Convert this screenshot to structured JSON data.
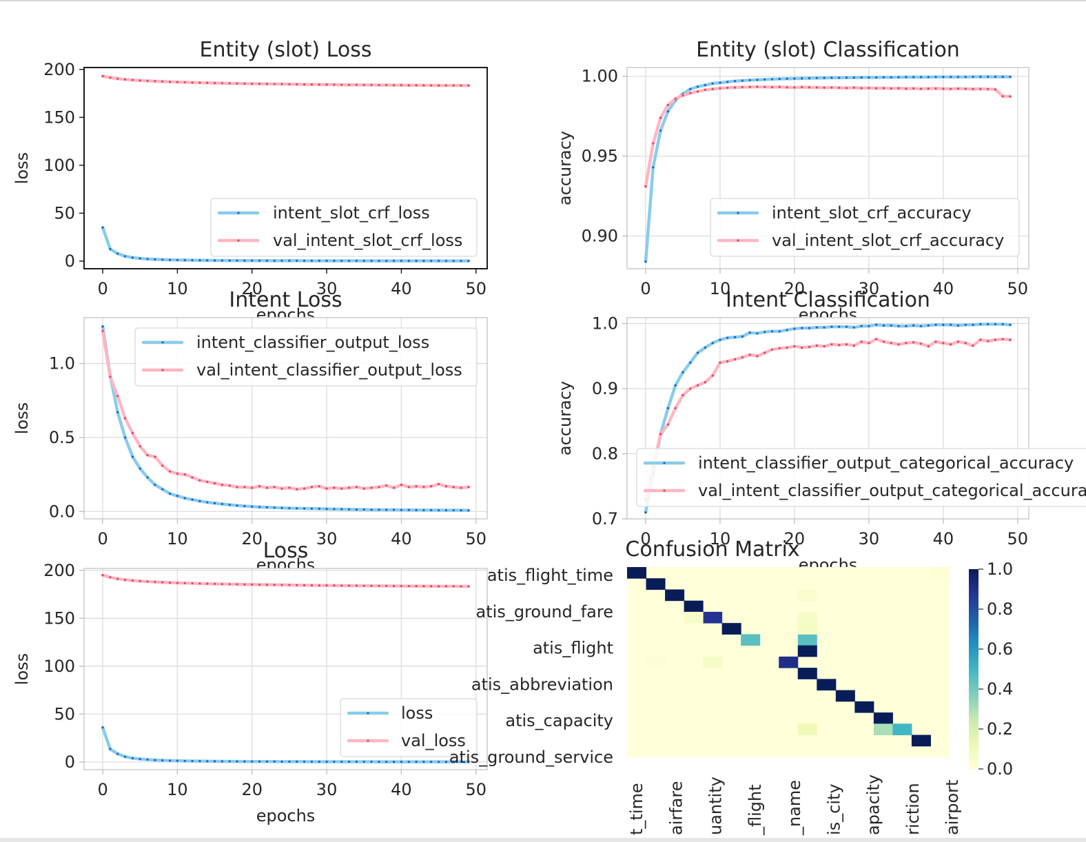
{
  "colors": {
    "train": "#87cdea",
    "val": "#ffb6c1",
    "marker_train": "#1f5fd6",
    "marker_val": "#e8435a",
    "grid": "#dcdcdc"
  },
  "chart_data": [
    {
      "id": "slot_loss",
      "type": "line",
      "title": "Entity (slot) Loss",
      "xlabel": "epochs",
      "ylabel": "loss",
      "xlim": [
        -2.5,
        51.5
      ],
      "ylim": [
        -8,
        202
      ],
      "xticks": [
        0,
        10,
        20,
        30,
        40,
        50
      ],
      "yticks": [
        0,
        50,
        100,
        150,
        200
      ],
      "grid": false,
      "legend": "lower-right",
      "series": [
        {
          "name": "intent_slot_crf_loss",
          "color": "train",
          "values": [
            35.0,
            12.5,
            7.8,
            5.0,
            3.6,
            2.8,
            2.2,
            1.8,
            1.5,
            1.3,
            1.1,
            1.0,
            0.9,
            0.8,
            0.7,
            0.65,
            0.6,
            0.55,
            0.5,
            0.48,
            0.45,
            0.42,
            0.4,
            0.38,
            0.36,
            0.34,
            0.32,
            0.3,
            0.29,
            0.28,
            0.27,
            0.26,
            0.25,
            0.24,
            0.23,
            0.22,
            0.21,
            0.2,
            0.2,
            0.19,
            0.18,
            0.18,
            0.17,
            0.17,
            0.16,
            0.16,
            0.15,
            0.15,
            0.15,
            0.14
          ]
        },
        {
          "name": "val_intent_slot_crf_loss",
          "color": "val",
          "values": [
            193.0,
            191.5,
            190.4,
            189.6,
            189.0,
            188.5,
            188.1,
            187.7,
            187.4,
            187.1,
            186.8,
            186.6,
            186.4,
            186.2,
            186.0,
            185.8,
            185.6,
            185.5,
            185.4,
            185.2,
            185.1,
            185.0,
            184.9,
            184.8,
            184.7,
            184.6,
            184.5,
            184.4,
            184.3,
            184.2,
            184.2,
            184.1,
            184.0,
            183.9,
            183.9,
            183.8,
            183.8,
            183.7,
            183.7,
            183.6,
            183.6,
            183.5,
            183.5,
            183.4,
            183.4,
            183.3,
            183.3,
            183.3,
            183.2,
            183.2
          ]
        }
      ]
    },
    {
      "id": "slot_acc",
      "type": "line",
      "title": "Entity (slot) Classification",
      "xlabel": "epochs",
      "ylabel": "accuracy",
      "xlim": [
        -2.5,
        51.5
      ],
      "ylim": [
        0.8795,
        1.0055
      ],
      "xticks": [
        0,
        10,
        20,
        30,
        40,
        50
      ],
      "yticks": [
        0.9,
        0.95,
        1.0
      ],
      "ytick_labels": [
        "0.90",
        "0.95",
        "1.00"
      ],
      "grid": true,
      "legend": "lower-right",
      "series": [
        {
          "name": "intent_slot_crf_accuracy",
          "color": "train",
          "values": [
            0.884,
            0.943,
            0.966,
            0.978,
            0.985,
            0.989,
            0.992,
            0.9935,
            0.9945,
            0.9955,
            0.996,
            0.9965,
            0.997,
            0.9973,
            0.9976,
            0.9978,
            0.998,
            0.9982,
            0.9984,
            0.9985,
            0.9986,
            0.9987,
            0.9988,
            0.9989,
            0.999,
            0.9991,
            0.9991,
            0.9992,
            0.9992,
            0.9993,
            0.9993,
            0.9993,
            0.9994,
            0.9994,
            0.9994,
            0.9995,
            0.9995,
            0.9995,
            0.9995,
            0.9996,
            0.9996,
            0.9996,
            0.9996,
            0.9996,
            0.9997,
            0.9997,
            0.9997,
            0.9997,
            0.9997,
            0.9997
          ]
        },
        {
          "name": "val_intent_slot_crf_accuracy",
          "color": "val",
          "values": [
            0.931,
            0.958,
            0.974,
            0.982,
            0.986,
            0.988,
            0.9895,
            0.9905,
            0.9915,
            0.992,
            0.9925,
            0.9928,
            0.993,
            0.9932,
            0.9933,
            0.9934,
            0.9933,
            0.9932,
            0.9933,
            0.9931,
            0.993,
            0.9932,
            0.9931,
            0.993,
            0.9929,
            0.993,
            0.9928,
            0.9927,
            0.9929,
            0.9926,
            0.9927,
            0.9925,
            0.9926,
            0.9924,
            0.9925,
            0.9923,
            0.9924,
            0.9922,
            0.9923,
            0.9924,
            0.9922,
            0.9921,
            0.9923,
            0.9922,
            0.992,
            0.9921,
            0.992,
            0.9918,
            0.9875,
            0.9874
          ]
        }
      ]
    },
    {
      "id": "intent_loss",
      "type": "line",
      "title": "Intent Loss",
      "xlabel": "epochs",
      "ylabel": "loss",
      "xlim": [
        -2.5,
        51.5
      ],
      "ylim": [
        -0.05,
        1.31
      ],
      "xticks": [
        0,
        10,
        20,
        30,
        40,
        50
      ],
      "yticks": [
        0,
        0.5,
        1.0
      ],
      "ytick_labels": [
        "0.0",
        "0.5",
        "1.0"
      ],
      "grid": true,
      "legend": "upper-right",
      "series": [
        {
          "name": "intent_classifier_output_loss",
          "color": "train",
          "values": [
            1.25,
            0.92,
            0.67,
            0.5,
            0.37,
            0.29,
            0.23,
            0.18,
            0.15,
            0.12,
            0.105,
            0.09,
            0.08,
            0.07,
            0.062,
            0.056,
            0.05,
            0.045,
            0.04,
            0.036,
            0.033,
            0.03,
            0.028,
            0.026,
            0.024,
            0.022,
            0.021,
            0.02,
            0.019,
            0.018,
            0.017,
            0.016,
            0.015,
            0.014,
            0.013,
            0.013,
            0.012,
            0.012,
            0.011,
            0.011,
            0.01,
            0.01,
            0.0095,
            0.009,
            0.009,
            0.0085,
            0.008,
            0.008,
            0.0075,
            0.007
          ]
        },
        {
          "name": "val_intent_classifier_output_loss",
          "color": "val",
          "values": [
            1.22,
            0.91,
            0.78,
            0.63,
            0.53,
            0.44,
            0.38,
            0.37,
            0.31,
            0.27,
            0.255,
            0.25,
            0.23,
            0.21,
            0.2,
            0.19,
            0.18,
            0.175,
            0.165,
            0.165,
            0.16,
            0.17,
            0.16,
            0.165,
            0.155,
            0.16,
            0.15,
            0.155,
            0.165,
            0.17,
            0.155,
            0.16,
            0.155,
            0.16,
            0.165,
            0.155,
            0.16,
            0.165,
            0.175,
            0.16,
            0.18,
            0.165,
            0.17,
            0.165,
            0.17,
            0.185,
            0.17,
            0.165,
            0.16,
            0.165
          ]
        }
      ]
    },
    {
      "id": "intent_acc",
      "type": "line",
      "title": "Intent Classification",
      "xlabel": "epochs",
      "ylabel": "accuracy",
      "xlim": [
        -2.5,
        51.5
      ],
      "ylim": [
        0.7,
        1.009
      ],
      "xticks": [
        0,
        10,
        20,
        30,
        40,
        50
      ],
      "yticks": [
        0.7,
        0.8,
        0.9,
        1.0
      ],
      "ytick_labels": [
        "0.7",
        "0.8",
        "0.9",
        "1.0"
      ],
      "grid": true,
      "legend": "lower-right",
      "series": [
        {
          "name": "intent_classifier_output_categorical_accuracy",
          "color": "train",
          "values": [
            0.71,
            0.77,
            0.83,
            0.87,
            0.905,
            0.925,
            0.94,
            0.955,
            0.963,
            0.97,
            0.975,
            0.978,
            0.979,
            0.98,
            0.986,
            0.985,
            0.987,
            0.988,
            0.988,
            0.99,
            0.992,
            0.993,
            0.993,
            0.994,
            0.994,
            0.995,
            0.995,
            0.995,
            0.994,
            0.996,
            0.996,
            0.998,
            0.997,
            0.997,
            0.996,
            0.996,
            0.997,
            0.996,
            0.997,
            0.998,
            0.998,
            0.998,
            0.997,
            0.998,
            0.998,
            0.999,
            0.999,
            0.999,
            0.999,
            0.998
          ]
        },
        {
          "name": "val_intent_classifier_output_categorical_accuracy",
          "color": "val",
          "values": [
            0.73,
            0.78,
            0.83,
            0.845,
            0.87,
            0.89,
            0.9,
            0.905,
            0.91,
            0.92,
            0.94,
            0.942,
            0.945,
            0.948,
            0.952,
            0.95,
            0.955,
            0.96,
            0.962,
            0.963,
            0.965,
            0.963,
            0.964,
            0.966,
            0.965,
            0.968,
            0.967,
            0.968,
            0.966,
            0.972,
            0.97,
            0.976,
            0.972,
            0.97,
            0.968,
            0.97,
            0.971,
            0.969,
            0.965,
            0.972,
            0.97,
            0.968,
            0.972,
            0.97,
            0.966,
            0.975,
            0.973,
            0.975,
            0.976,
            0.975
          ]
        }
      ]
    },
    {
      "id": "total_loss",
      "type": "line",
      "title": "Loss",
      "xlabel": "epochs",
      "ylabel": "loss",
      "xlim": [
        -2.5,
        51.5
      ],
      "ylim": [
        -8,
        202
      ],
      "xticks": [
        0,
        10,
        20,
        30,
        40,
        50
      ],
      "yticks": [
        0,
        50,
        100,
        150,
        200
      ],
      "grid": true,
      "legend": "lower-right",
      "series": [
        {
          "name": "loss",
          "color": "train",
          "values": [
            36.0,
            13.5,
            8.5,
            5.5,
            4.0,
            3.1,
            2.5,
            2.0,
            1.7,
            1.45,
            1.25,
            1.1,
            1.0,
            0.9,
            0.8,
            0.72,
            0.65,
            0.6,
            0.55,
            0.52,
            0.48,
            0.45,
            0.43,
            0.41,
            0.39,
            0.37,
            0.35,
            0.33,
            0.31,
            0.3,
            0.29,
            0.28,
            0.27,
            0.26,
            0.25,
            0.24,
            0.23,
            0.22,
            0.22,
            0.21,
            0.2,
            0.2,
            0.19,
            0.19,
            0.18,
            0.18,
            0.17,
            0.17,
            0.17,
            0.16
          ]
        },
        {
          "name": "val_loss",
          "color": "val",
          "values": [
            195.0,
            192.8,
            191.2,
            190.1,
            189.4,
            188.8,
            188.3,
            187.9,
            187.5,
            187.2,
            186.9,
            186.7,
            186.5,
            186.3,
            186.1,
            185.9,
            185.7,
            185.6,
            185.5,
            185.3,
            185.2,
            185.1,
            185.0,
            184.9,
            184.8,
            184.7,
            184.6,
            184.5,
            184.4,
            184.3,
            184.3,
            184.2,
            184.1,
            184.0,
            184.0,
            183.9,
            183.9,
            183.8,
            183.8,
            183.7,
            183.7,
            183.6,
            183.6,
            183.5,
            183.5,
            183.4,
            183.4,
            183.4,
            183.3,
            183.3
          ]
        }
      ]
    },
    {
      "id": "confusion",
      "type": "heatmap",
      "title": "Confusion Matrix",
      "colormap": "YlGnBu",
      "vmin": 0.0,
      "vmax": 1.0,
      "colorbar_ticks": [
        0.0,
        0.2,
        0.4,
        0.6,
        0.8,
        1.0
      ],
      "colorbar_tick_labels": [
        "0.0",
        "0.2",
        "0.4",
        "0.6",
        "0.8",
        "1.0"
      ],
      "row_labels": [
        "atis_flight_time",
        "",
        "atis_ground_fare",
        "",
        "atis_flight",
        "",
        "atis_abbreviation",
        "",
        "atis_capacity",
        "",
        "atis_ground_service"
      ],
      "col_labels": [
        "t_time",
        "",
        "airfare",
        "",
        "uantity",
        "",
        "_flight",
        "",
        "_name",
        "",
        "is_city",
        "",
        "apacity",
        "",
        "riction",
        "",
        "airport",
        ""
      ],
      "cells": [
        [
          0,
          0,
          1.0
        ],
        [
          1,
          1,
          1.0
        ],
        [
          2,
          2,
          1.0
        ],
        [
          3,
          3,
          1.0
        ],
        [
          4,
          4,
          0.88
        ],
        [
          5,
          5,
          1.0
        ],
        [
          6,
          6,
          0.45
        ],
        [
          6,
          9,
          0.45
        ],
        [
          7,
          9,
          1.0
        ],
        [
          8,
          8,
          0.9
        ],
        [
          8,
          4,
          0.06
        ],
        [
          9,
          9,
          1.0
        ],
        [
          10,
          10,
          1.0
        ],
        [
          11,
          11,
          1.0
        ],
        [
          12,
          12,
          1.0
        ],
        [
          13,
          13,
          1.0
        ],
        [
          14,
          13,
          0.3
        ],
        [
          14,
          14,
          0.5
        ],
        [
          14,
          9,
          0.1
        ],
        [
          15,
          15,
          1.0
        ],
        [
          0,
          16,
          0.02
        ],
        [
          2,
          9,
          0.03
        ],
        [
          4,
          3,
          0.05
        ],
        [
          4,
          9,
          0.05
        ],
        [
          5,
          9,
          0.07
        ],
        [
          8,
          1,
          0.01
        ]
      ]
    }
  ]
}
